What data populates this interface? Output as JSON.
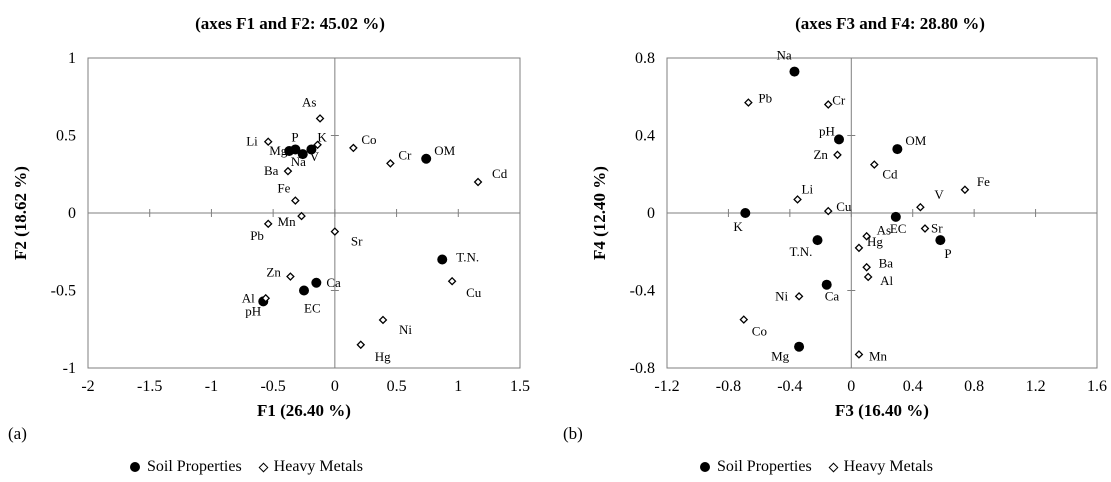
{
  "chart_data": [
    {
      "type": "scatter",
      "title": "(axes F1 and F2: 45.02 %)",
      "panel_label": "(a)",
      "xlabel": "F1 (26.40 %)",
      "ylabel": "F2 (18.62 %)",
      "xlim": [
        -2,
        1.5
      ],
      "ylim": [
        -1,
        1
      ],
      "xticks": [
        -2,
        -1.5,
        -1,
        -0.5,
        0,
        0.5,
        1,
        1.5
      ],
      "yticks": [
        -1,
        -0.5,
        0,
        0.5,
        1
      ],
      "grid": false,
      "legend_position": "bottom",
      "series": [
        {
          "name": "Soil Properties",
          "marker": "filled-circle",
          "points": [
            {
              "label": "OM",
              "x": 0.74,
              "y": 0.35
            },
            {
              "label": "Mg",
              "x": -0.37,
              "y": 0.4
            },
            {
              "label": "P",
              "x": -0.32,
              "y": 0.41
            },
            {
              "label": "Na",
              "x": -0.26,
              "y": 0.38
            },
            {
              "label": "K",
              "x": -0.19,
              "y": 0.41
            },
            {
              "label": "T.N.",
              "x": 0.87,
              "y": -0.3
            },
            {
              "label": "Ca",
              "x": -0.15,
              "y": -0.45
            },
            {
              "label": "EC",
              "x": -0.25,
              "y": -0.5
            },
            {
              "label": "pH",
              "x": -0.58,
              "y": -0.57
            }
          ]
        },
        {
          "name": "Heavy Metals",
          "marker": "open-diamond",
          "points": [
            {
              "label": "As",
              "x": -0.12,
              "y": 0.61
            },
            {
              "label": "Co",
              "x": 0.15,
              "y": 0.42
            },
            {
              "label": "V",
              "x": -0.14,
              "y": 0.44
            },
            {
              "label": "Li",
              "x": -0.54,
              "y": 0.46
            },
            {
              "label": "Cr",
              "x": 0.45,
              "y": 0.32
            },
            {
              "label": "Ba",
              "x": -0.38,
              "y": 0.27
            },
            {
              "label": "Cd",
              "x": 1.16,
              "y": 0.2
            },
            {
              "label": "Fe",
              "x": -0.32,
              "y": 0.08
            },
            {
              "label": "Mn",
              "x": -0.27,
              "y": -0.02
            },
            {
              "label": "Pb",
              "x": -0.54,
              "y": -0.07
            },
            {
              "label": "Sr",
              "x": 0.0,
              "y": -0.12
            },
            {
              "label": "Zn",
              "x": -0.36,
              "y": -0.41
            },
            {
              "label": "Al",
              "x": -0.56,
              "y": -0.55
            },
            {
              "label": "Cu",
              "x": 0.95,
              "y": -0.44
            },
            {
              "label": "Ni",
              "x": 0.39,
              "y": -0.69
            },
            {
              "label": "Hg",
              "x": 0.21,
              "y": -0.85
            }
          ]
        }
      ]
    },
    {
      "type": "scatter",
      "title": "(axes F3 and F4: 28.80 %)",
      "panel_label": "(b)",
      "xlabel": "F3 (16.40 %)",
      "ylabel": "F4 (12.40 %)",
      "xlim": [
        -1.2,
        1.6
      ],
      "ylim": [
        -0.8,
        0.8
      ],
      "xticks": [
        -1.2,
        -0.8,
        -0.4,
        0,
        0.4,
        0.8,
        1.2,
        1.6
      ],
      "yticks": [
        -0.8,
        -0.4,
        0,
        0.4,
        0.8
      ],
      "grid": false,
      "legend_position": "bottom",
      "series": [
        {
          "name": "Soil Properties",
          "marker": "filled-circle",
          "points": [
            {
              "label": "Na",
              "x": -0.37,
              "y": 0.73
            },
            {
              "label": "pH",
              "x": -0.08,
              "y": 0.38
            },
            {
              "label": "OM",
              "x": 0.3,
              "y": 0.33
            },
            {
              "label": "K",
              "x": -0.69,
              "y": 0.0
            },
            {
              "label": "EC",
              "x": 0.29,
              "y": -0.02
            },
            {
              "label": "P",
              "x": 0.58,
              "y": -0.14
            },
            {
              "label": "T.N.",
              "x": -0.22,
              "y": -0.14
            },
            {
              "label": "Ca",
              "x": -0.16,
              "y": -0.37
            },
            {
              "label": "Mg",
              "x": -0.34,
              "y": -0.69
            }
          ]
        },
        {
          "name": "Heavy Metals",
          "marker": "open-diamond",
          "points": [
            {
              "label": "Pb",
              "x": -0.67,
              "y": 0.57
            },
            {
              "label": "Cr",
              "x": -0.15,
              "y": 0.56
            },
            {
              "label": "Zn",
              "x": -0.09,
              "y": 0.3
            },
            {
              "label": "Cd",
              "x": 0.15,
              "y": 0.25
            },
            {
              "label": "Fe",
              "x": 0.74,
              "y": 0.12
            },
            {
              "label": "V",
              "x": 0.45,
              "y": 0.03
            },
            {
              "label": "Li",
              "x": -0.35,
              "y": 0.07
            },
            {
              "label": "Cu",
              "x": -0.15,
              "y": 0.01
            },
            {
              "label": "Sr",
              "x": 0.48,
              "y": -0.08
            },
            {
              "label": "As",
              "x": 0.1,
              "y": -0.12
            },
            {
              "label": "Hg",
              "x": 0.05,
              "y": -0.18
            },
            {
              "label": "Ba",
              "x": 0.1,
              "y": -0.28
            },
            {
              "label": "Al",
              "x": 0.11,
              "y": -0.33
            },
            {
              "label": "Ni",
              "x": -0.34,
              "y": -0.43
            },
            {
              "label": "Co",
              "x": -0.7,
              "y": -0.55
            },
            {
              "label": "Mn",
              "x": 0.05,
              "y": -0.73
            }
          ]
        }
      ]
    }
  ],
  "legend": [
    {
      "label": "Soil Properties",
      "marker": "filled-circle"
    },
    {
      "label": "Heavy Metals",
      "marker": "open-diamond"
    }
  ]
}
